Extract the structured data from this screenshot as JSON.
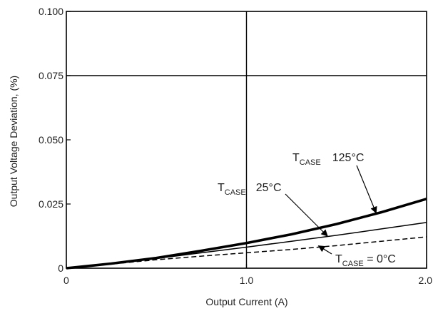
{
  "chart_data": {
    "type": "line",
    "title": "",
    "xlabel": "Output Current (A)",
    "ylabel": "Output Voltage Deviation, (%)",
    "xlim": [
      0,
      2.0
    ],
    "ylim": [
      0,
      0.1
    ],
    "xticks": [
      0,
      1.0,
      2.0
    ],
    "xtick_labels": [
      "0",
      "1.0",
      "2.0"
    ],
    "yticks": [
      0,
      0.025,
      0.05,
      0.075,
      0.1
    ],
    "ytick_labels": [
      "0",
      "0.025",
      "0.050",
      "0.075",
      "0.100"
    ],
    "grid": "major gridlines at x = 1.0 and y = 0.075",
    "series": [
      {
        "name": "TCASE = 125°C",
        "style": "thick solid",
        "color": "#000000",
        "x": [
          0,
          0.25,
          0.5,
          0.75,
          1.0,
          1.25,
          1.5,
          1.75,
          2.0
        ],
        "y": [
          0,
          0.0018,
          0.004,
          0.0068,
          0.0098,
          0.0132,
          0.0172,
          0.0218,
          0.027
        ]
      },
      {
        "name": "TCASE = 25°C",
        "style": "thin solid",
        "color": "#000000",
        "x": [
          0,
          0.25,
          0.5,
          0.75,
          1.0,
          1.25,
          1.5,
          1.75,
          2.0
        ],
        "y": [
          0,
          0.0018,
          0.0038,
          0.006,
          0.0082,
          0.0105,
          0.0128,
          0.0153,
          0.0178
        ]
      },
      {
        "name": "TCASE = 0°C",
        "style": "dashed",
        "color": "#000000",
        "x": [
          0,
          0.25,
          0.5,
          0.75,
          1.0,
          1.25,
          1.5,
          1.75,
          2.0
        ],
        "y": [
          0,
          0.0016,
          0.0033,
          0.0047,
          0.006,
          0.0073,
          0.0088,
          0.0105,
          0.0122
        ]
      }
    ],
    "annotations": [
      {
        "main": "T",
        "sub": "CASE",
        "value": "125°C"
      },
      {
        "main": "T",
        "sub": "CASE",
        "value": "25°C"
      },
      {
        "main": "T",
        "sub": "CASE",
        "value": " = 0°C"
      }
    ]
  }
}
